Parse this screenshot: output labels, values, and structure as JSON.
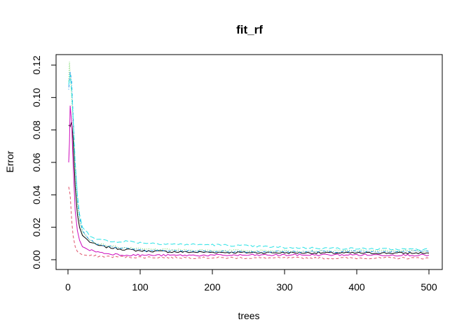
{
  "chart_data": {
    "type": "line",
    "title": "fit_rf",
    "xlabel": "trees",
    "ylabel": "Error",
    "xlim": [
      0,
      500
    ],
    "ylim": [
      0,
      0.125
    ],
    "x_ticks": [
      0,
      100,
      200,
      300,
      400,
      500
    ],
    "x_tick_labels": [
      "0",
      "100",
      "200",
      "300",
      "400",
      "500"
    ],
    "y_ticks": [
      0,
      0.02,
      0.04,
      0.06,
      0.08,
      0.1,
      0.12
    ],
    "y_tick_labels": [
      "0.00",
      "0.02",
      "0.04",
      "0.06",
      "0.08",
      "0.10",
      "0.12"
    ],
    "grid": false,
    "legend": "none",
    "series": [
      {
        "color": "#000000",
        "dash": "solid",
        "points": [
          [
            1,
            0.083
          ],
          [
            3,
            0.082
          ],
          [
            5,
            0.085
          ],
          [
            7,
            0.075
          ],
          [
            10,
            0.045
          ],
          [
            13,
            0.028
          ],
          [
            16,
            0.02
          ],
          [
            20,
            0.015
          ],
          [
            30,
            0.011
          ],
          [
            40,
            0.009
          ],
          [
            50,
            0.008
          ],
          [
            75,
            0.0065
          ],
          [
            100,
            0.0055
          ],
          [
            150,
            0.0048
          ],
          [
            200,
            0.0046
          ],
          [
            250,
            0.0044
          ],
          [
            300,
            0.0043
          ],
          [
            350,
            0.0042
          ],
          [
            400,
            0.0041
          ],
          [
            450,
            0.0041
          ],
          [
            500,
            0.0041
          ]
        ]
      },
      {
        "color": "#DF536B",
        "dash": "dashed",
        "points": [
          [
            1,
            0.045
          ],
          [
            3,
            0.04
          ],
          [
            5,
            0.025
          ],
          [
            7,
            0.015
          ],
          [
            10,
            0.008
          ],
          [
            13,
            0.005
          ],
          [
            16,
            0.004
          ],
          [
            20,
            0.003
          ],
          [
            30,
            0.0025
          ],
          [
            50,
            0.002
          ],
          [
            100,
            0.0015
          ],
          [
            200,
            0.0012
          ],
          [
            300,
            0.001
          ],
          [
            400,
            0.001
          ],
          [
            500,
            0.001
          ]
        ]
      },
      {
        "color": "#61D04F",
        "dash": "dotted",
        "points": [
          [
            1,
            0.11
          ],
          [
            2,
            0.122
          ],
          [
            3,
            0.115
          ],
          [
            5,
            0.1
          ],
          [
            7,
            0.085
          ],
          [
            10,
            0.055
          ],
          [
            13,
            0.035
          ],
          [
            16,
            0.024
          ],
          [
            20,
            0.017
          ],
          [
            30,
            0.012
          ],
          [
            40,
            0.01
          ],
          [
            50,
            0.009
          ],
          [
            75,
            0.0075
          ],
          [
            100,
            0.0065
          ],
          [
            150,
            0.006
          ],
          [
            200,
            0.0058
          ],
          [
            250,
            0.0056
          ],
          [
            300,
            0.0055
          ],
          [
            350,
            0.0054
          ],
          [
            400,
            0.0055
          ],
          [
            450,
            0.0055
          ],
          [
            500,
            0.0055
          ]
        ]
      },
      {
        "color": "#2297E6",
        "dash": "dotdash",
        "points": [
          [
            1,
            0.105
          ],
          [
            3,
            0.116
          ],
          [
            5,
            0.11
          ],
          [
            7,
            0.09
          ],
          [
            10,
            0.06
          ],
          [
            13,
            0.038
          ],
          [
            16,
            0.026
          ],
          [
            20,
            0.018
          ],
          [
            30,
            0.012
          ],
          [
            40,
            0.01
          ],
          [
            50,
            0.009
          ],
          [
            75,
            0.007
          ],
          [
            100,
            0.006
          ],
          [
            150,
            0.0055
          ],
          [
            200,
            0.0052
          ],
          [
            250,
            0.005
          ],
          [
            300,
            0.005
          ],
          [
            350,
            0.005
          ],
          [
            400,
            0.0051
          ],
          [
            450,
            0.0052
          ],
          [
            500,
            0.0052
          ]
        ]
      },
      {
        "color": "#28E2E5",
        "dash": "longdash",
        "points": [
          [
            1,
            0.108
          ],
          [
            3,
            0.114
          ],
          [
            5,
            0.105
          ],
          [
            7,
            0.088
          ],
          [
            10,
            0.06
          ],
          [
            13,
            0.04
          ],
          [
            16,
            0.028
          ],
          [
            20,
            0.02
          ],
          [
            30,
            0.015
          ],
          [
            40,
            0.013
          ],
          [
            50,
            0.012
          ],
          [
            60,
            0.011
          ],
          [
            80,
            0.0115
          ],
          [
            100,
            0.0105
          ],
          [
            150,
            0.0095
          ],
          [
            200,
            0.0092
          ],
          [
            250,
            0.0085
          ],
          [
            300,
            0.0075
          ],
          [
            350,
            0.0072
          ],
          [
            400,
            0.0068
          ],
          [
            450,
            0.0065
          ],
          [
            500,
            0.0063
          ]
        ]
      },
      {
        "color": "#CD0BBC",
        "dash": "solid",
        "points": [
          [
            1,
            0.06
          ],
          [
            2,
            0.072
          ],
          [
            3,
            0.095
          ],
          [
            5,
            0.085
          ],
          [
            7,
            0.06
          ],
          [
            10,
            0.03
          ],
          [
            13,
            0.018
          ],
          [
            16,
            0.012
          ],
          [
            20,
            0.008
          ],
          [
            30,
            0.006
          ],
          [
            50,
            0.004
          ],
          [
            75,
            0.003
          ],
          [
            100,
            0.0028
          ],
          [
            150,
            0.0027
          ],
          [
            200,
            0.0027
          ],
          [
            250,
            0.0028
          ],
          [
            300,
            0.0029
          ],
          [
            350,
            0.003
          ],
          [
            400,
            0.003
          ],
          [
            450,
            0.0029
          ],
          [
            500,
            0.0028
          ]
        ]
      }
    ]
  }
}
